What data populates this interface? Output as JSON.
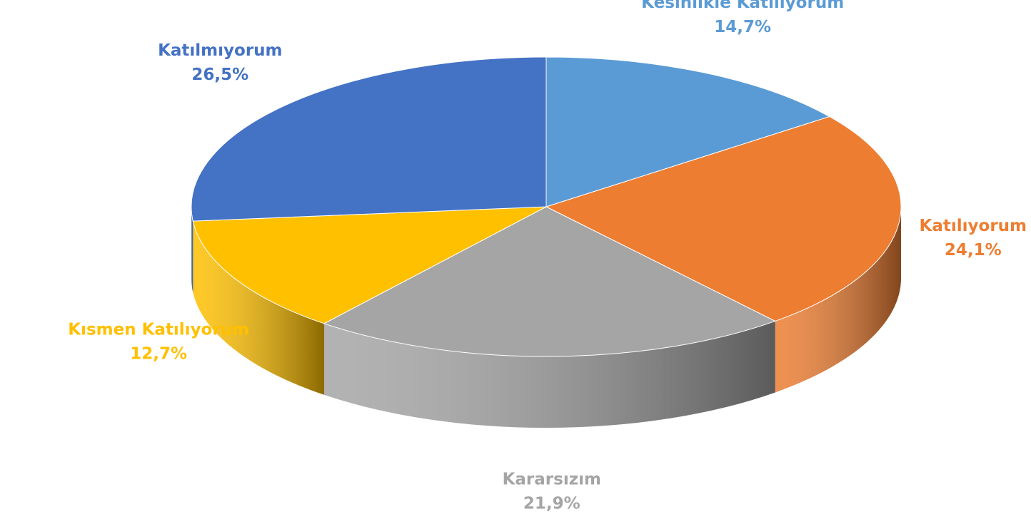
{
  "chart_data": {
    "type": "pie",
    "categories": [
      "Kesinlikle Katılıyorum",
      "Katılıyorum",
      "Kararsızım",
      "Kısmen Katılıyorum",
      "Katılmıyorum"
    ],
    "values": [
      14.7,
      24.1,
      21.9,
      12.7,
      26.5
    ],
    "value_labels": [
      "14,7%",
      "24,1%",
      "21,9%",
      "12,7%",
      "26,5%"
    ],
    "colors": [
      "#5b9bd5",
      "#ed7d31",
      "#a5a5a5",
      "#ffc000",
      "#4472c4"
    ]
  }
}
